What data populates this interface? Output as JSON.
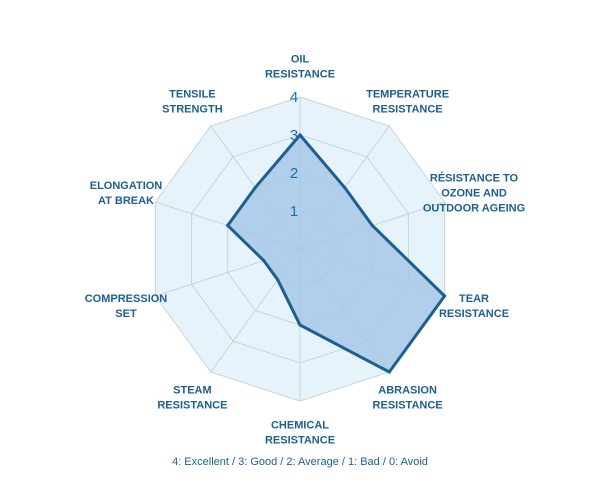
{
  "chart_data": {
    "type": "radar",
    "axes": [
      [
        "OIL",
        "RESISTANCE"
      ],
      [
        "TEMPERATURE",
        "RESISTANCE"
      ],
      [
        "RÉSISTANCE TO",
        "OZONE AND",
        "OUTDOOR AGEING"
      ],
      [
        "TEAR",
        "RESISTANCE"
      ],
      [
        "ABRASION",
        "RESISTANCE"
      ],
      [
        "CHEMICAL",
        "RESISTANCE"
      ],
      [
        "STEAM",
        "RESISTANCE"
      ],
      [
        "COMPRESSION",
        "SET"
      ],
      [
        "ELONGATION",
        "AT BREAK"
      ],
      [
        "TENSILE",
        "STRENGTH"
      ]
    ],
    "values": [
      3,
      2,
      2,
      4,
      4,
      2,
      1,
      1,
      2,
      2
    ],
    "rlim": [
      0,
      4
    ],
    "ticks": [
      "1",
      "2",
      "3",
      "4"
    ],
    "caption": "4: Excellent / 3: Good / 2: Average / 1: Bad / 0: Avoid",
    "colors": {
      "background_fill": "#e6f3fb",
      "grid": "#c9d4db",
      "series_fill": "#a7c7e8",
      "series_stroke": "#1d5f8f",
      "text": "#1d5f8f"
    }
  }
}
